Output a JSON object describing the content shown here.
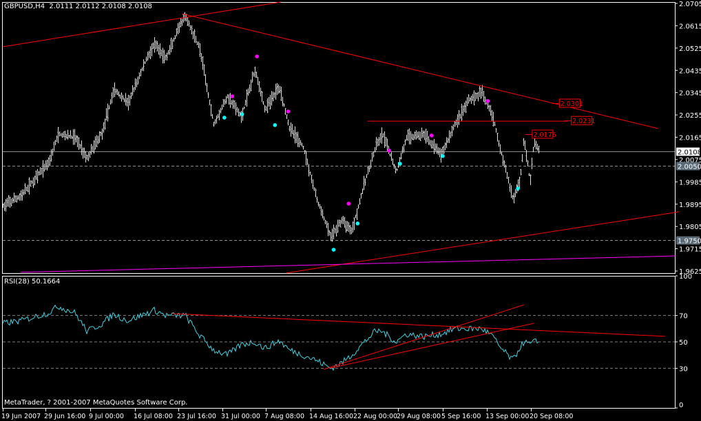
{
  "window": {
    "title": "GBPUSD,H4  2.0111 2.0112 2.0108 2.0108",
    "indicator_label": "RSI(28) 50.1664",
    "copyright": "MetaTrader, ? 2001-2007 MetaQuotes Software Corp."
  },
  "colors": {
    "background": "#000000",
    "bars": "#e0e0e0",
    "trendline": "#ff0000",
    "support_line": "#ff00ff",
    "rsi_line": "#40d0e0",
    "fractal_up": "#ff00ff",
    "fractal_down": "#00ffff",
    "grid_level": "#808080"
  },
  "chart_data": [
    {
      "type": "line",
      "subtype": "ohlc-bars",
      "symbol": "GBPUSD",
      "timeframe": "H4",
      "ylim": [
        1.9625,
        2.0705
      ],
      "y_ticks": [
        "2.0705",
        "2.0615",
        "2.0525",
        "2.0435",
        "2.0345",
        "2.0255",
        "2.0165",
        "2.0075",
        "1.9985",
        "1.9895",
        "1.9805",
        "1.9715",
        "1.9625"
      ],
      "x_ticks": [
        {
          "label": "19 Jun 2007",
          "t": "2007-06-19 00:00"
        },
        {
          "label": "29 Jun 16:00",
          "t": "2007-06-29 16:00"
        },
        {
          "label": "9 Jul 00:00",
          "t": "2007-07-09 00:00"
        },
        {
          "label": "16 Jul 08:00",
          "t": "2007-07-16 08:00"
        },
        {
          "label": "23 Jul 16:00",
          "t": "2007-07-23 16:00"
        },
        {
          "label": "31 Jul 00:00",
          "t": "2007-07-31 00:00"
        },
        {
          "label": "7 Aug 08:00",
          "t": "2007-08-07 08:00"
        },
        {
          "label": "14 Aug 16:00",
          "t": "2007-08-14 16:00"
        },
        {
          "label": "22 Aug 00:00",
          "t": "2007-08-22 00:00"
        },
        {
          "label": "29 Aug 08:00",
          "t": "2007-08-29 08:00"
        },
        {
          "label": "5 Sep 16:00",
          "t": "2007-09-05 16:00"
        },
        {
          "label": "13 Sep 00:00",
          "t": "2007-09-13 00:00"
        },
        {
          "label": "20 Sep 08:00",
          "t": "2007-09-20 08:00"
        }
      ],
      "price_path": [
        [
          "2007-06-19 00:00",
          1.9886,
          64
        ],
        [
          "2007-06-23 12:00",
          1.9928,
          66
        ],
        [
          "2007-06-30 08:00",
          2.0066,
          72
        ],
        [
          "2007-07-02 08:00",
          2.0178,
          77
        ],
        [
          "2007-07-05 20:00",
          2.0164,
          72
        ],
        [
          "2007-07-08 08:00",
          2.008,
          58
        ],
        [
          "2007-07-11 00:00",
          2.0191,
          64
        ],
        [
          "2007-07-12 20:00",
          2.0358,
          71
        ],
        [
          "2007-07-15 04:00",
          2.0302,
          66
        ],
        [
          "2007-07-18 12:00",
          2.0497,
          72
        ],
        [
          "2007-07-19 16:00",
          2.0538,
          74
        ],
        [
          "2007-07-21 12:00",
          2.0483,
          70
        ],
        [
          "2007-07-24 08:00",
          2.0636,
          70
        ],
        [
          "2007-07-24 20:00",
          2.065,
          70
        ],
        [
          "2007-07-27 04:00",
          2.0525,
          55
        ],
        [
          "2007-07-29 12:00",
          2.0219,
          44
        ],
        [
          "2007-07-31 20:00",
          2.033,
          40
        ],
        [
          "2007-08-03 04:00",
          2.0247,
          48
        ],
        [
          "2007-08-05 12:00",
          2.0441,
          50
        ],
        [
          "2007-08-07 04:00",
          2.0275,
          45
        ],
        [
          "2007-08-09 12:00",
          2.0372,
          51
        ],
        [
          "2007-08-11 04:00",
          2.0205,
          44
        ],
        [
          "2007-08-13 12:00",
          2.0122,
          40
        ],
        [
          "2007-08-15 16:00",
          1.9914,
          36
        ],
        [
          "2007-08-18 00:00",
          1.9761,
          30
        ],
        [
          "2007-08-19 20:00",
          1.983,
          34
        ],
        [
          "2007-08-21 12:00",
          1.9789,
          40
        ],
        [
          "2007-08-23 16:00",
          1.9983,
          50
        ],
        [
          "2007-08-25 12:00",
          2.0122,
          58
        ],
        [
          "2007-08-26 16:00",
          2.0178,
          58
        ],
        [
          "2007-08-29 00:00",
          2.0025,
          50
        ],
        [
          "2007-08-30 16:00",
          2.0164,
          56
        ],
        [
          "2007-09-02 12:00",
          2.0178,
          54
        ],
        [
          "2007-09-05 08:00",
          2.0094,
          56
        ],
        [
          "2007-09-07 16:00",
          2.0219,
          60
        ],
        [
          "2007-09-10 00:00",
          2.0316,
          60
        ],
        [
          "2007-09-12 04:00",
          2.0344,
          60
        ],
        [
          "2007-09-13 20:00",
          2.0261,
          55
        ],
        [
          "2007-09-15 04:00",
          2.0122,
          46
        ],
        [
          "2007-09-17 08:00",
          1.9914,
          36
        ],
        [
          "2007-09-18 12:00",
          1.9997,
          46
        ],
        [
          "2007-09-19 04:00",
          2.0164,
          50
        ],
        [
          "2007-09-20 04:00",
          1.9983,
          48
        ],
        [
          "2007-09-20 20:00",
          2.015,
          50
        ],
        [
          "2007-09-21 16:00",
          2.0108,
          50.1664
        ]
      ],
      "last_price": "2.0108",
      "price_levels": [
        {
          "label": "2.0108",
          "value": 2.0108,
          "style": "solid",
          "box": "white"
        },
        {
          "label": "2.0050",
          "value": 2.005,
          "style": "dashed",
          "box": "gray"
        },
        {
          "label": "1.9750",
          "value": 1.975,
          "style": "dashed",
          "box": "gray"
        }
      ],
      "trendlines": [
        {
          "from": [
            "2007-06-19 00:00",
            2.053
          ],
          "to": [
            "2007-08-09 20:00",
            2.0711
          ],
          "color": "#ff0000"
        },
        {
          "from": [
            "2007-07-24 08:00",
            2.0663
          ],
          "to": [
            "2007-10-11 12:00",
            2.02
          ],
          "color": "#ff0000"
        },
        {
          "from": [
            "2007-08-24 04:00",
            2.023
          ],
          "to": [
            "2007-09-26 08:00",
            2.023
          ],
          "color": "#ff0000"
        },
        {
          "from": [
            "2007-08-10 16:00",
            1.9617
          ],
          "to": [
            "2007-10-15 00:00",
            1.9864
          ],
          "color": "#ff0000"
        },
        {
          "from": [
            "2007-06-23 12:00",
            1.962
          ],
          "to": [
            "2007-10-14 12:00",
            1.9686
          ],
          "color": "#ff00ff"
        }
      ],
      "price_tags": [
        {
          "label": "2.0301",
          "t": "2007-09-25 00:00",
          "value": 2.0301
        },
        {
          "label": "2.0231",
          "t": "2007-09-27 00:00",
          "value": 2.0231
        },
        {
          "label": "2.0176",
          "t": "2007-09-20 12:00",
          "value": 2.0176
        }
      ],
      "fractals_up": [
        [
          "2007-08-01 16:00",
          2.033
        ],
        [
          "2007-08-05 20:00",
          2.0491
        ],
        [
          "2007-08-11 00:00",
          2.0269
        ],
        [
          "2007-08-21 00:00",
          1.9897
        ],
        [
          "2007-08-27 20:00",
          2.0111
        ],
        [
          "2007-09-03 20:00",
          2.0172
        ],
        [
          "2007-09-13 04:00",
          2.0311
        ]
      ],
      "fractals_down": [
        [
          "2007-07-31 08:00",
          2.0244
        ],
        [
          "2007-08-03 08:00",
          2.0258
        ],
        [
          "2007-08-08 20:00",
          2.0214
        ],
        [
          "2007-08-18 12:00",
          1.9711
        ],
        [
          "2007-08-22 12:00",
          1.9817
        ],
        [
          "2007-08-29 16:00",
          2.0058
        ],
        [
          "2007-09-05 16:00",
          2.0089
        ],
        [
          "2007-09-18 04:00",
          1.9958
        ]
      ]
    },
    {
      "type": "line",
      "name": "RSI(28)",
      "last_value": 50.1664,
      "ylim": [
        0,
        100
      ],
      "y_ticks": [
        "100",
        "70",
        "50",
        "30",
        "0"
      ],
      "levels": [
        70,
        50,
        30
      ],
      "trendlines": [
        {
          "from": [
            "2007-07-22 16:00",
            71.4
          ],
          "to": [
            "2007-10-12 16:00",
            54.2
          ]
        },
        {
          "from": [
            "2007-08-16 20:00",
            29.2
          ],
          "to": [
            "2007-09-19 04:00",
            78.1
          ]
        },
        {
          "from": [
            "2007-08-18 00:00",
            30.2
          ],
          "to": [
            "2007-09-20 20:00",
            64.1
          ]
        }
      ]
    }
  ]
}
